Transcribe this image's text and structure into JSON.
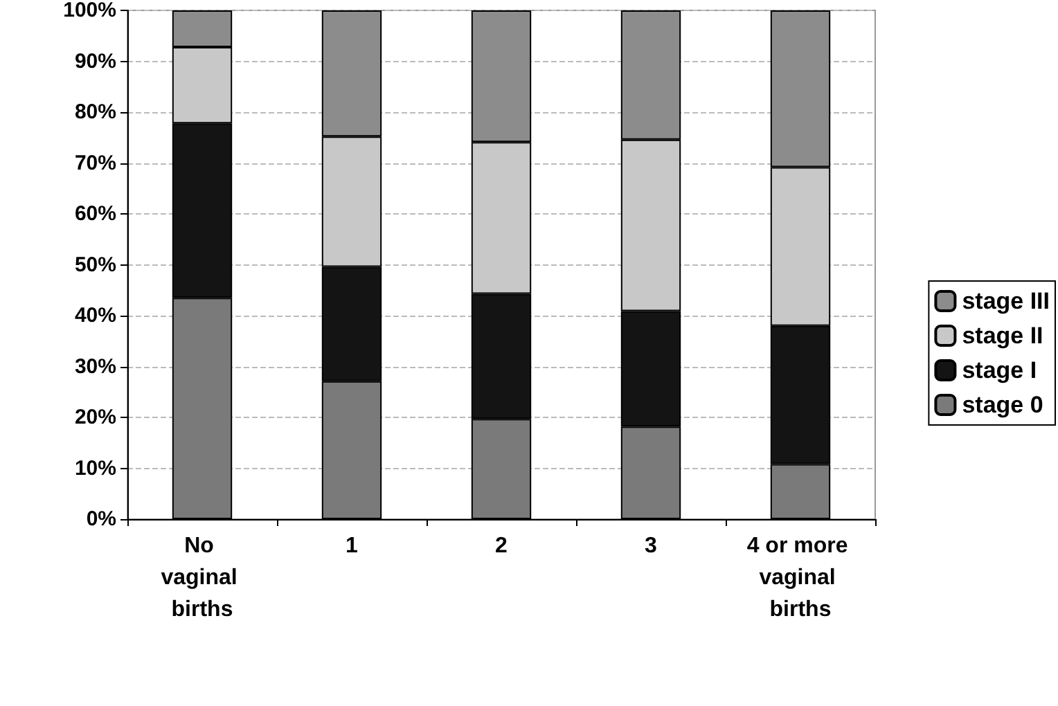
{
  "chart_data": {
    "type": "bar",
    "stacked": true,
    "categories": [
      "No vaginal births",
      "1",
      "2",
      "3",
      "4 or more vaginal births"
    ],
    "series": [
      {
        "name": "stage 0",
        "color": "#7a7a7a",
        "values": [
          43.5,
          27.1,
          19.7,
          18.2,
          10.8
        ]
      },
      {
        "name": "stage I",
        "color": "#141414",
        "values": [
          34.3,
          22.5,
          24.6,
          22.7,
          27.2
        ]
      },
      {
        "name": "stage II",
        "color": "#c8c8c8",
        "values": [
          15,
          25.6,
          29.8,
          33.7,
          31.2
        ]
      },
      {
        "name": "stage III",
        "color": "#8c8c8c",
        "values": [
          7.2,
          24.8,
          25.9,
          25.4,
          30.8
        ]
      }
    ],
    "ylim": [
      0,
      100
    ],
    "yticks": [
      {
        "value": 0,
        "label": "0%"
      },
      {
        "value": 10,
        "label": "10%"
      },
      {
        "value": 20,
        "label": "20%"
      },
      {
        "value": 30,
        "label": "30%"
      },
      {
        "value": 40,
        "label": "40%"
      },
      {
        "value": 50,
        "label": "50%"
      },
      {
        "value": 60,
        "label": "60%"
      },
      {
        "value": 70,
        "label": "70%"
      },
      {
        "value": 80,
        "label": "80%"
      },
      {
        "value": 90,
        "label": "90%"
      },
      {
        "value": 100,
        "label": "100%"
      }
    ],
    "grid": "y",
    "legend": "right"
  }
}
